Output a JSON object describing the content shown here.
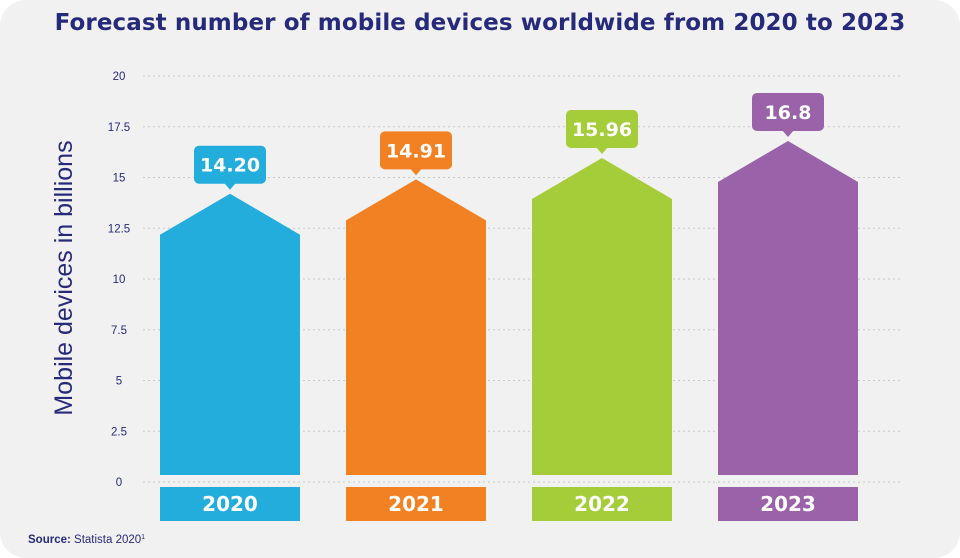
{
  "header": {
    "title": "Forecast number of mobile devices worldwide from 2020 to 2023"
  },
  "footer": {
    "source_label": "Source:",
    "source_text": "Statista 2020",
    "source_sup": "1"
  },
  "chart_data": {
    "type": "bar",
    "title": "Forecast number of mobile devices worldwide from 2020 to 2023",
    "xlabel": "",
    "ylabel": "Mobile devices in billions",
    "categories": [
      "2020",
      "2021",
      "2022",
      "2023"
    ],
    "values": [
      14.2,
      14.91,
      15.96,
      16.8
    ],
    "value_labels": [
      "14.20",
      "14.91",
      "15.96",
      "16.8"
    ],
    "colors": [
      "#22addd",
      "#f28123",
      "#a5cd39",
      "#9a62a8"
    ],
    "ylim": [
      0,
      20
    ],
    "yticks": [
      "0",
      "2.5",
      "5",
      "7.5",
      "10",
      "12.5",
      "15",
      "17.5",
      "20"
    ],
    "grid": true,
    "legend": "none"
  }
}
